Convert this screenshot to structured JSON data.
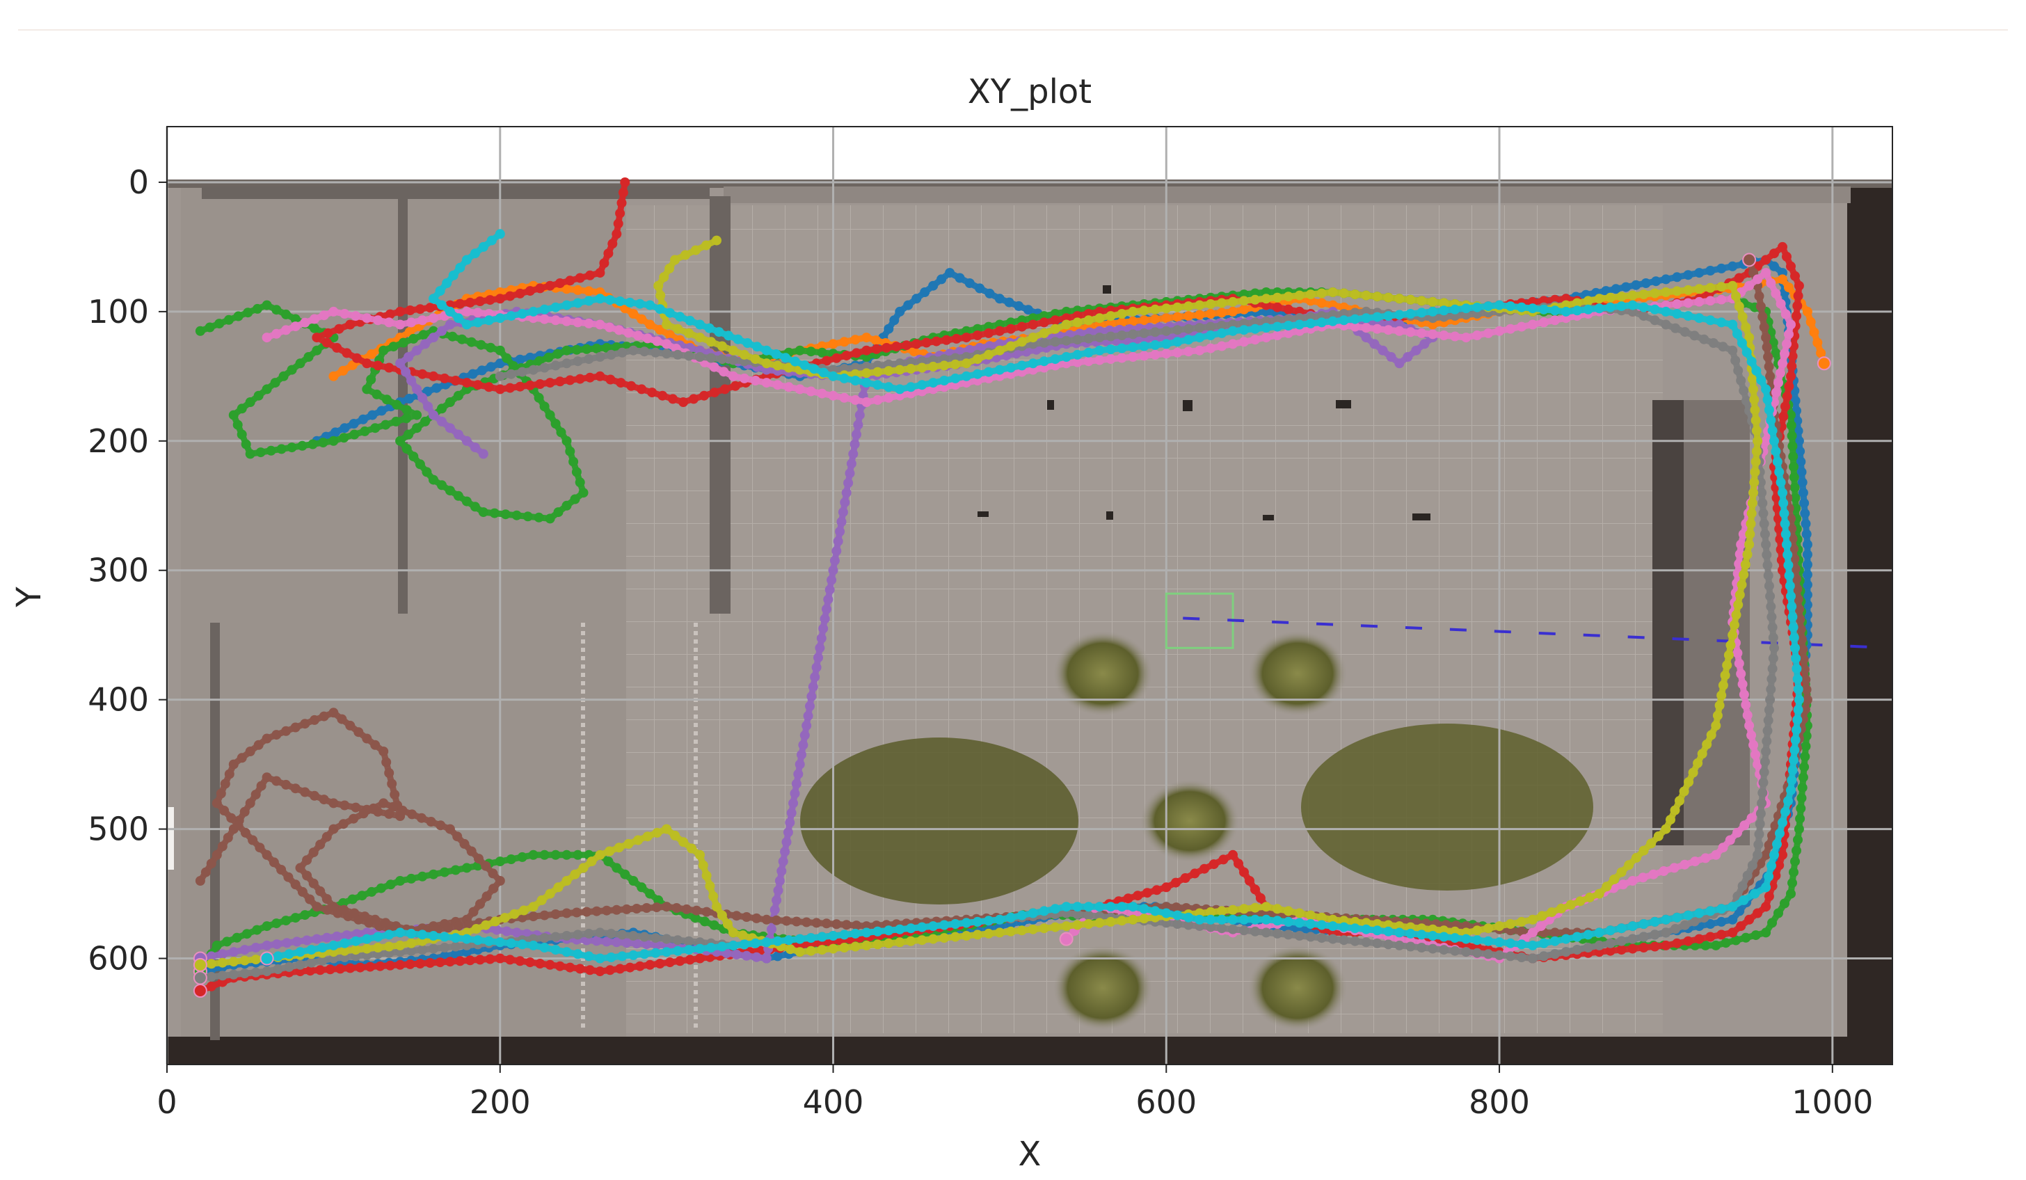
{
  "chart_data": {
    "type": "line",
    "title": "XY_plot",
    "xlabel": "X",
    "ylabel": "Y",
    "xlim": [
      0,
      1036
    ],
    "ylim": [
      682,
      -43
    ],
    "y_inverted": true,
    "grid": true,
    "background": "top-down floor-plan image of a room with grey tiled floor, walls, potted plants and a shrub area",
    "x_ticks": [
      "0",
      "200",
      "400",
      "600",
      "800",
      "1000"
    ],
    "y_ticks": [
      "0",
      "100",
      "200",
      "300",
      "400",
      "500",
      "600"
    ],
    "x_tick_values": [
      0,
      200,
      400,
      600,
      800,
      1000
    ],
    "y_tick_values": [
      0,
      100,
      200,
      300,
      400,
      500,
      600
    ],
    "annotations": [
      {
        "type": "rectangle",
        "x": [
          600,
          640
        ],
        "y": [
          318,
          360
        ],
        "color": "#7fd07f"
      },
      {
        "type": "dashed-line",
        "x": [
          610,
          1036
        ],
        "y": [
          337,
          360
        ],
        "color": "#3a2fd0"
      }
    ],
    "series": [
      {
        "color": "#1f77b4",
        "x": [
          90,
          140,
          200,
          260,
          300,
          340,
          380,
          420,
          440,
          470,
          500,
          540,
          600,
          660,
          720,
          780,
          840,
          900,
          940,
          960,
          970,
          975,
          980,
          985,
          985,
          980,
          975,
          965,
          940,
          900,
          860,
          820,
          780,
          720,
          660,
          600,
          560,
          520,
          480,
          440,
          400,
          360,
          320,
          280,
          240,
          200,
          160,
          120,
          80,
          40,
          20
        ],
        "y": [
          200,
          170,
          140,
          125,
          130,
          140,
          150,
          140,
          100,
          70,
          90,
          110,
          105,
          100,
          110,
          100,
          90,
          75,
          65,
          60,
          70,
          130,
          200,
          280,
          350,
          420,
          480,
          530,
          570,
          580,
          590,
          600,
          590,
          580,
          575,
          560,
          560,
          570,
          580,
          585,
          590,
          600,
          590,
          580,
          585,
          590,
          600,
          605,
          600,
          605,
          610
        ]
      },
      {
        "color": "#ff7f0e",
        "x": [
          100,
          140,
          180,
          220,
          260,
          290,
          320,
          350,
          380,
          420,
          460,
          490,
          520,
          560,
          600,
          640,
          680,
          720,
          760,
          800,
          840,
          880,
          920,
          950,
          970,
          985,
          995
        ],
        "y": [
          150,
          120,
          90,
          80,
          85,
          110,
          130,
          140,
          130,
          120,
          135,
          125,
          120,
          110,
          105,
          100,
          90,
          100,
          110,
          100,
          95,
          90,
          85,
          80,
          75,
          100,
          140
        ]
      },
      {
        "color": "#2ca02c",
        "x": [
          20,
          60,
          100,
          70,
          40,
          50,
          100,
          150,
          120,
          130,
          160,
          200,
          220,
          240,
          250,
          230,
          190,
          160,
          140,
          180,
          240,
          300,
          340,
          380,
          420,
          460,
          500,
          540,
          580,
          620,
          660,
          700,
          740,
          780,
          820,
          860,
          900,
          940,
          960,
          975,
          980,
          985,
          980,
          975,
          960,
          930,
          880,
          820,
          760,
          700,
          640,
          580,
          520,
          460,
          400,
          340,
          300,
          260,
          220,
          180,
          140,
          100,
          60,
          30,
          20
        ],
        "y": [
          115,
          95,
          120,
          150,
          180,
          210,
          200,
          180,
          160,
          130,
          115,
          130,
          160,
          200,
          240,
          260,
          255,
          230,
          200,
          160,
          130,
          125,
          140,
          130,
          135,
          120,
          110,
          100,
          95,
          90,
          85,
          85,
          90,
          95,
          100,
          100,
          95,
          90,
          100,
          180,
          300,
          420,
          500,
          550,
          580,
          590,
          590,
          580,
          570,
          570,
          565,
          570,
          565,
          580,
          590,
          580,
          560,
          520,
          520,
          530,
          540,
          560,
          575,
          590,
          610
        ]
      },
      {
        "color": "#d62728",
        "x": [
          275,
          270,
          260,
          230,
          200,
          170,
          140,
          110,
          90,
          120,
          160,
          200,
          260,
          310,
          360,
          420,
          480,
          520,
          560,
          600,
          640,
          680,
          720,
          760,
          800,
          840,
          880,
          920,
          950,
          970,
          980,
          975,
          965,
          970,
          980,
          975,
          970,
          960,
          940,
          900,
          860,
          820,
          780,
          740,
          700,
          660,
          640,
          600,
          560,
          500,
          440,
          380,
          320,
          260,
          200,
          140,
          80,
          40,
          20
        ],
        "y": [
          0,
          40,
          70,
          80,
          90,
          95,
          100,
          110,
          120,
          140,
          150,
          160,
          150,
          170,
          150,
          130,
          120,
          110,
          100,
          95,
          90,
          100,
          110,
          100,
          95,
          90,
          100,
          90,
          70,
          50,
          80,
          150,
          220,
          300,
          380,
          450,
          520,
          560,
          580,
          590,
          595,
          600,
          590,
          580,
          580,
          560,
          520,
          545,
          560,
          570,
          580,
          590,
          600,
          610,
          600,
          605,
          610,
          615,
          625
        ]
      },
      {
        "color": "#9467bd",
        "x": [
          190,
          160,
          140,
          170,
          210,
          260,
          320,
          360,
          400,
          440,
          500,
          560,
          620,
          680,
          740,
          760,
          740,
          700,
          660,
          600,
          540,
          480,
          420,
          360,
          300,
          240,
          180,
          120,
          60,
          20
        ],
        "y": [
          210,
          180,
          140,
          110,
          100,
          110,
          130,
          145,
          150,
          140,
          125,
          115,
          110,
          105,
          110,
          120,
          140,
          100,
          110,
          120,
          125,
          140,
          150,
          600,
          590,
          585,
          575,
          580,
          590,
          600
        ]
      },
      {
        "color": "#8c564b",
        "x": [
          20,
          40,
          60,
          100,
          140,
          130,
          100,
          60,
          40,
          30,
          60,
          90,
          140,
          180,
          200,
          170,
          130,
          100,
          80,
          100,
          150,
          200,
          240,
          300,
          360,
          420,
          480,
          540,
          600,
          660,
          720,
          780,
          820,
          860,
          900,
          940,
          960,
          975,
          985,
          980,
          975,
          965,
          960,
          955,
          950
        ],
        "y": [
          540,
          500,
          460,
          480,
          490,
          440,
          410,
          430,
          450,
          480,
          520,
          560,
          580,
          570,
          540,
          500,
          480,
          500,
          530,
          560,
          580,
          570,
          565,
          560,
          570,
          575,
          570,
          565,
          560,
          565,
          570,
          575,
          580,
          580,
          570,
          560,
          520,
          460,
          400,
          330,
          260,
          180,
          120,
          80,
          60
        ]
      },
      {
        "color": "#e377c2",
        "x": [
          60,
          100,
          140,
          180,
          220,
          260,
          300,
          340,
          380,
          400,
          420,
          460,
          500,
          540,
          580,
          620,
          660,
          700,
          740,
          780,
          820,
          860,
          900,
          940,
          960,
          975,
          960,
          945,
          940,
          950,
          960,
          930,
          880,
          840,
          800,
          760,
          720,
          680,
          640,
          600,
          560,
          540
        ],
        "y": [
          120,
          100,
          110,
          100,
          105,
          110,
          125,
          150,
          160,
          165,
          170,
          160,
          150,
          140,
          135,
          130,
          120,
          110,
          115,
          120,
          110,
          100,
          95,
          90,
          70,
          110,
          200,
          280,
          340,
          420,
          480,
          520,
          540,
          560,
          600,
          590,
          580,
          570,
          580,
          570,
          560,
          585
        ]
      },
      {
        "color": "#7f7f7f",
        "x": [
          200,
          240,
          280,
          320,
          360,
          400,
          440,
          480,
          520,
          560,
          600,
          640,
          680,
          720,
          760,
          800,
          840,
          880,
          900,
          940,
          955,
          960,
          965,
          960,
          955,
          940,
          900,
          860,
          820,
          780,
          740,
          700,
          660,
          620,
          580,
          540,
          500,
          460,
          420,
          380,
          340,
          300,
          260,
          220,
          180,
          140,
          100,
          60,
          20
        ],
        "y": [
          150,
          140,
          130,
          135,
          140,
          145,
          140,
          135,
          125,
          120,
          115,
          110,
          105,
          100,
          105,
          100,
          95,
          100,
          110,
          130,
          200,
          280,
          360,
          440,
          520,
          560,
          580,
          590,
          600,
          595,
          590,
          585,
          580,
          575,
          570,
          565,
          570,
          575,
          580,
          585,
          590,
          585,
          580,
          585,
          590,
          595,
          600,
          610,
          615
        ]
      },
      {
        "color": "#bcbd22",
        "x": [
          330,
          305,
          295,
          300,
          320,
          340,
          360,
          380,
          400,
          440,
          480,
          500,
          520,
          540,
          580,
          620,
          660,
          700,
          740,
          780,
          820,
          860,
          900,
          940,
          950,
          955,
          950,
          940,
          930,
          900,
          860,
          820,
          780,
          740,
          700,
          660,
          620,
          580,
          540,
          500,
          460,
          420,
          380,
          340,
          330,
          320,
          300,
          260,
          220,
          180,
          140,
          100,
          60,
          20
        ],
        "y": [
          45,
          60,
          80,
          110,
          120,
          130,
          140,
          145,
          150,
          145,
          140,
          130,
          120,
          110,
          100,
          95,
          90,
          85,
          90,
          95,
          100,
          90,
          85,
          80,
          120,
          200,
          280,
          350,
          420,
          500,
          550,
          570,
          580,
          575,
          570,
          560,
          565,
          570,
          575,
          580,
          585,
          590,
          595,
          580,
          560,
          520,
          500,
          520,
          560,
          580,
          590,
          595,
          600,
          605
        ]
      },
      {
        "color": "#17becf",
        "x": [
          200,
          180,
          160,
          180,
          220,
          260,
          290,
          320,
          360,
          400,
          440,
          480,
          520,
          560,
          600,
          640,
          680,
          720,
          760,
          800,
          840,
          880,
          900,
          940,
          960,
          970,
          975,
          980,
          975,
          965,
          960,
          940,
          900,
          860,
          820,
          780,
          740,
          700,
          660,
          620,
          580,
          540,
          500,
          460,
          420,
          380,
          340,
          300,
          260,
          220,
          180,
          140,
          100,
          60
        ],
        "y": [
          40,
          60,
          90,
          110,
          100,
          90,
          95,
          110,
          130,
          150,
          160,
          150,
          140,
          130,
          125,
          115,
          110,
          105,
          100,
          95,
          100,
          95,
          100,
          110,
          160,
          240,
          320,
          400,
          470,
          520,
          545,
          560,
          570,
          580,
          590,
          585,
          580,
          575,
          570,
          570,
          560,
          560,
          570,
          575,
          580,
          585,
          590,
          595,
          600,
          590,
          585,
          580,
          590,
          600
        ]
      }
    ]
  }
}
